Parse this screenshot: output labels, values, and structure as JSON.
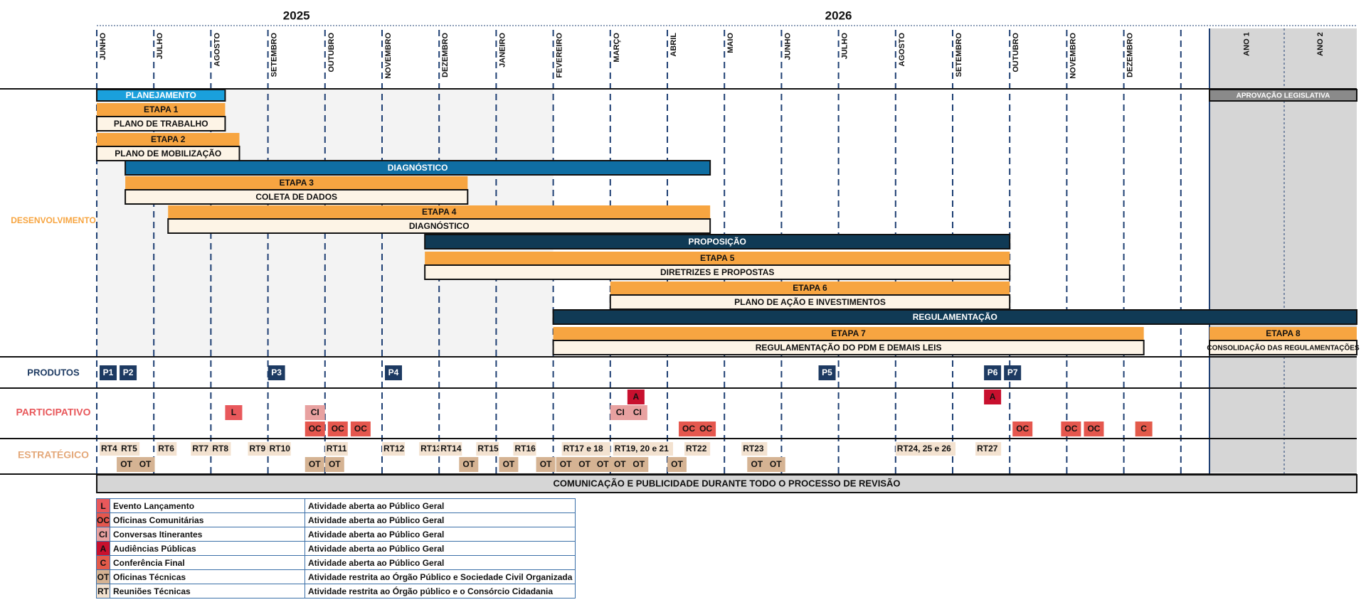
{
  "years": [
    {
      "label": "2025",
      "month_index": 3.5
    },
    {
      "label": "2026",
      "month_index": 13
    },
    {
      "label": "ANO 1",
      "month_index": 20.25,
      "post": true
    },
    {
      "label": "ANO 2",
      "month_index": 21.25,
      "post": true
    }
  ],
  "months": [
    "JUNHO",
    "JULHO",
    "AGOSTO",
    "SETEMBRO",
    "OUTUBRO",
    "NOVEMBRO",
    "DEZEMBRO",
    "JANEIRO",
    "FEVEREIRO",
    "MARÇO",
    "ABRIL",
    "MAIO",
    "JUNHO",
    "JULHO",
    "AGOSTO",
    "SETEMBRO",
    "OUTUBRO",
    "NOVEMBRO",
    "DEZEMBRO"
  ],
  "post_columns": [
    "ANO 1",
    "ANO 2"
  ],
  "row_labels": {
    "desenvolvimento": "DESENVOLVIMENTO",
    "produtos": "PRODUTOS",
    "participativo": "PARTICIPATIVO",
    "estrategico": "ESTRATÉGICO"
  },
  "phases": [
    {
      "label": "PLANEJAMENTO",
      "start": 0,
      "end": 2.25,
      "kind": "planning"
    },
    {
      "label": "DIAGNÓSTICO",
      "start": 0.5,
      "end": 10.75,
      "kind": "phase"
    },
    {
      "label": "PROPOSIÇÃO",
      "start": 5.75,
      "end": 16,
      "kind": "phase-dark"
    },
    {
      "label": "REGULAMENTAÇÃO",
      "start": 8,
      "end": 22.25,
      "kind": "phase-dark"
    },
    {
      "label": "APROVAÇÃO LEGISLATIVA",
      "start": 19.75,
      "end": 22.25,
      "kind": "legis"
    }
  ],
  "etapas": [
    {
      "label": "ETAPA 1",
      "sub": "PLANO DE TRABALHO",
      "start": 0,
      "end": 2.25
    },
    {
      "label": "ETAPA 2",
      "sub": "PLANO DE MOBILIZAÇÃO",
      "start": 0,
      "end": 2.5
    },
    {
      "label": "ETAPA 3",
      "sub": "COLETA DE DADOS",
      "start": 0.5,
      "end": 6.5
    },
    {
      "label": "ETAPA 4",
      "sub": "DIAGNÓSTICO",
      "start": 1.25,
      "end": 10.75
    },
    {
      "label": "ETAPA 5",
      "sub": "DIRETRIZES E PROPOSTAS",
      "start": 5.75,
      "end": 16
    },
    {
      "label": "ETAPA 6",
      "sub": "PLANO DE AÇÃO E INVESTIMENTOS",
      "start": 9,
      "end": 16
    },
    {
      "label": "ETAPA 7",
      "sub": "REGULAMENTAÇÃO DO PDM E DEMAIS LEIS",
      "start": 8,
      "end": 18.35
    },
    {
      "label": "ETAPA 8",
      "sub": "CONSOLIDAÇÃO DAS REGULAMENTAÇÕES",
      "start": 19.75,
      "end": 22.25
    }
  ],
  "produtos": [
    {
      "label": "P1",
      "pos": 0.05
    },
    {
      "label": "P2",
      "pos": 0.4
    },
    {
      "label": "P3",
      "pos": 3
    },
    {
      "label": "P4",
      "pos": 5.05
    },
    {
      "label": "P5",
      "pos": 12.65
    },
    {
      "label": "P6",
      "pos": 15.55
    },
    {
      "label": "P7",
      "pos": 15.9
    }
  ],
  "participativo": [
    {
      "label": "L",
      "pos": 2.25,
      "row": 1
    },
    {
      "label": "CI",
      "pos": 3.65,
      "row": 1
    },
    {
      "label": "OC",
      "pos": 3.65,
      "row": 2
    },
    {
      "label": "OC",
      "pos": 4.05,
      "row": 2
    },
    {
      "label": "OC",
      "pos": 4.45,
      "row": 2
    },
    {
      "label": "A",
      "pos": 9.3,
      "row": 0
    },
    {
      "label": "CI",
      "pos": 9,
      "row": 1
    },
    {
      "label": "CI",
      "pos": 9.3,
      "row": 1
    },
    {
      "label": "OC",
      "pos": 10.2,
      "row": 2
    },
    {
      "label": "OC",
      "pos": 10.5,
      "row": 2
    },
    {
      "label": "A",
      "pos": 15.55,
      "row": 0
    },
    {
      "label": "OC",
      "pos": 16.05,
      "row": 2
    },
    {
      "label": "OC",
      "pos": 16.9,
      "row": 2
    },
    {
      "label": "OC",
      "pos": 17.3,
      "row": 2
    },
    {
      "label": "C",
      "pos": 18.2,
      "row": 2
    }
  ],
  "estrategico_rt": [
    {
      "label": "RT4",
      "pos": 0.05,
      "w": 0.35
    },
    {
      "label": "RT5",
      "pos": 0.4,
      "w": 0.35
    },
    {
      "label": "RT6",
      "pos": 1.05,
      "w": 0.35
    },
    {
      "label": "RT7",
      "pos": 1.65,
      "w": 0.35
    },
    {
      "label": "RT8",
      "pos": 2,
      "w": 0.35
    },
    {
      "label": "RT9",
      "pos": 2.65,
      "w": 0.35
    },
    {
      "label": "RT10",
      "pos": 3,
      "w": 0.4
    },
    {
      "label": "RT11",
      "pos": 4,
      "w": 0.4
    },
    {
      "label": "RT12",
      "pos": 5,
      "w": 0.4
    },
    {
      "label": "RT13",
      "pos": 5.65,
      "w": 0.35
    },
    {
      "label": "RT14",
      "pos": 6,
      "w": 0.4
    },
    {
      "label": "RT15",
      "pos": 6.65,
      "w": 0.4
    },
    {
      "label": "RT16",
      "pos": 7.3,
      "w": 0.4
    },
    {
      "label": "RT17 e 18",
      "pos": 8.15,
      "w": 0.85
    },
    {
      "label": "RT19, 20 e 21",
      "pos": 9.05,
      "w": 1.05
    },
    {
      "label": "RT22",
      "pos": 10.3,
      "w": 0.45
    },
    {
      "label": "RT23",
      "pos": 11.3,
      "w": 0.45
    },
    {
      "label": "RT24, 25 e 26",
      "pos": 14,
      "w": 1.05
    },
    {
      "label": "RT27",
      "pos": 15.4,
      "w": 0.45
    }
  ],
  "estrategico_ot": [
    {
      "label": "OT",
      "pos": 0.35
    },
    {
      "label": "OT",
      "pos": 0.68
    },
    {
      "label": "OT",
      "pos": 3.65
    },
    {
      "label": "OT",
      "pos": 4
    },
    {
      "label": "OT",
      "pos": 6.35
    },
    {
      "label": "OT",
      "pos": 7.05
    },
    {
      "label": "OT",
      "pos": 7.7
    },
    {
      "label": "OT",
      "pos": 8.05
    },
    {
      "label": "OT",
      "pos": 8.38
    },
    {
      "label": "OT",
      "pos": 8.7
    },
    {
      "label": "OT",
      "pos": 9
    },
    {
      "label": "OT",
      "pos": 9.33
    },
    {
      "label": "OT",
      "pos": 10
    },
    {
      "label": "OT",
      "pos": 11.4
    },
    {
      "label": "OT",
      "pos": 11.73
    }
  ],
  "footer_bar": "COMUNICAÇÃO E PUBLICIDADE DURANTE TODO O PROCESSO DE REVISÃO",
  "legend": [
    {
      "code": "L",
      "name": "Evento Lançamento",
      "desc": "Atividade aberta ao Público Geral",
      "color": "#e8585b"
    },
    {
      "code": "OC",
      "name": "Oficinas Comunitárias",
      "desc": "Atividade aberta ao Público Geral",
      "color": "#e5574e"
    },
    {
      "code": "CI",
      "name": "Conversas Itinerantes",
      "desc": "Atividade aberta ao Público Geral",
      "color": "#e8a1a0"
    },
    {
      "code": "A",
      "name": "Audiências Públicas",
      "desc": "Atividade aberta ao Público Geral",
      "color": "#c8102e"
    },
    {
      "code": "C",
      "name": "Conferência Final",
      "desc": "Atividade aberta ao Público Geral",
      "color": "#e35a4a"
    },
    {
      "code": "OT",
      "name": "Oficinas Técnicas",
      "desc": "Atividade restrita ao Órgão Público e Sociedade Civil Organizada",
      "color": "#d5b393"
    },
    {
      "code": "RT",
      "name": "Reuniões Técnicas",
      "desc": "Atividade restrita ao Órgão público e o Consórcio Cidadania",
      "color": "#f3e2d0"
    }
  ],
  "colors": {
    "orange": "#f7a541",
    "cream": "#fdf4e6",
    "planning": "#1aa0dc",
    "phase_blue": "#0f6ea3",
    "phase_dark": "#103a55",
    "legis": "#8a8a8a",
    "produto": "#1d3a62",
    "grid_blue": "#1e3f73",
    "post_bg": "#d6d6d6",
    "shade": "#f3f3f3",
    "dev_label": "#f7a541",
    "part_label": "#e8585b",
    "estr_label": "#e4a879",
    "prod_label": "#1d3a62"
  }
}
